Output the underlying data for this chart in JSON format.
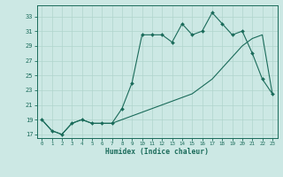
{
  "title": "",
  "xlabel": "Humidex (Indice chaleur)",
  "ylabel": "",
  "bg_color": "#cce8e4",
  "line_color": "#1a6b5a",
  "grid_color": "#b0d4cc",
  "xlim": [
    -0.5,
    23.5
  ],
  "ylim": [
    16.5,
    34.5
  ],
  "yticks": [
    17,
    19,
    21,
    23,
    25,
    27,
    29,
    31,
    33
  ],
  "xticks": [
    0,
    1,
    2,
    3,
    4,
    5,
    6,
    7,
    8,
    9,
    10,
    11,
    12,
    13,
    14,
    15,
    16,
    17,
    18,
    19,
    20,
    21,
    22,
    23
  ],
  "series1_x": [
    0,
    1,
    2,
    3,
    4,
    5,
    6,
    7,
    8,
    9,
    10,
    11,
    12,
    13,
    14,
    15,
    16,
    17,
    18,
    19,
    20,
    21,
    22,
    23
  ],
  "series1_y": [
    19.0,
    17.5,
    17.0,
    18.5,
    19.0,
    18.5,
    18.5,
    18.5,
    20.5,
    24.0,
    30.5,
    30.5,
    30.5,
    29.5,
    32.0,
    30.5,
    31.0,
    33.5,
    32.0,
    30.5,
    31.0,
    28.0,
    24.5,
    22.5
  ],
  "series2_x": [
    0,
    1,
    2,
    3,
    4,
    5,
    6,
    7,
    8,
    9,
    10,
    11,
    12,
    13,
    14,
    15,
    16,
    17,
    18,
    19,
    20,
    21,
    22,
    23
  ],
  "series2_y": [
    19.0,
    17.5,
    17.0,
    18.5,
    19.0,
    18.5,
    18.5,
    18.5,
    19.0,
    19.5,
    20.0,
    20.5,
    21.0,
    21.5,
    22.0,
    22.5,
    23.5,
    24.5,
    26.0,
    27.5,
    29.0,
    30.0,
    30.5,
    22.5
  ]
}
